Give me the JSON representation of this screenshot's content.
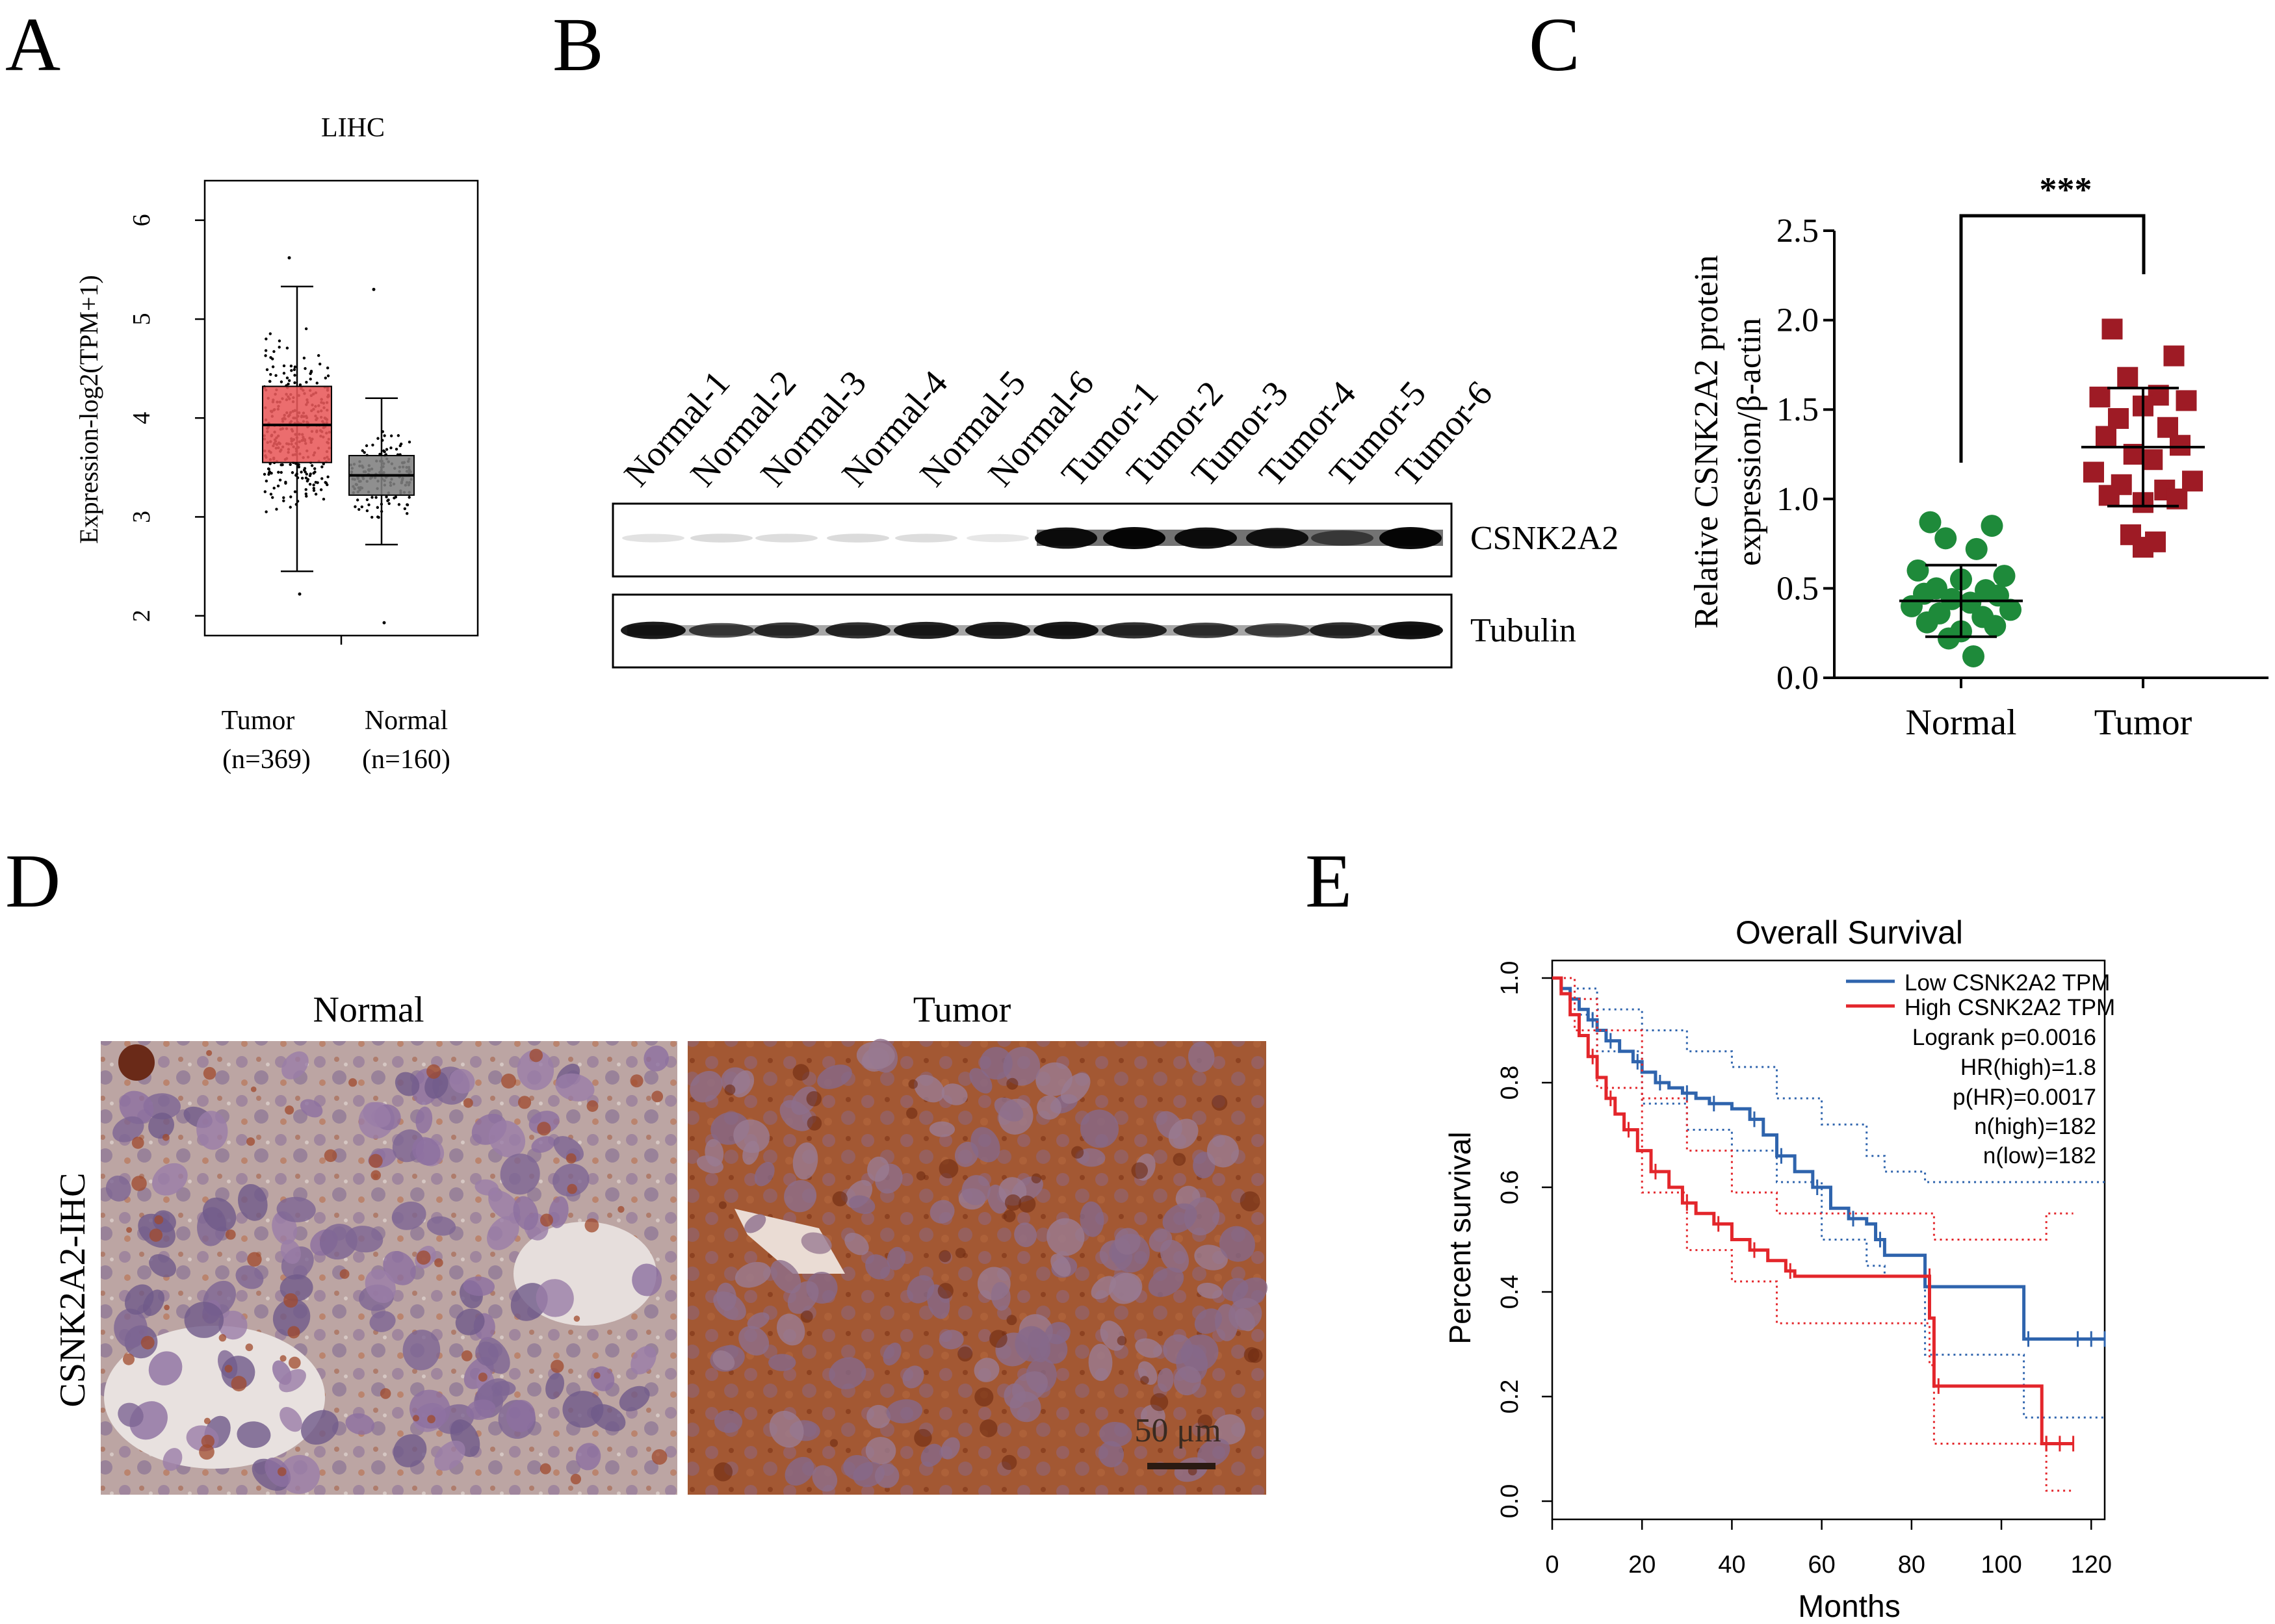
{
  "panel_letters": {
    "a": "A",
    "b": "B",
    "c": "C",
    "d": "D",
    "e": "E"
  },
  "panel_a": {
    "title": "LIHC",
    "ylabel": "Expression-log2(TPM+1)",
    "yticks": [
      "2",
      "3",
      "4",
      "5",
      "6"
    ],
    "groups": [
      {
        "name": "Tumor",
        "n": "(n=369)",
        "color": "#e8595a"
      },
      {
        "name": "Normal",
        "n": "(n=160)",
        "color": "#808080"
      }
    ]
  },
  "panel_b": {
    "lanes": [
      "Normal-1",
      "Normal-2",
      "Normal-3",
      "Normal-4",
      "Normal-5",
      "Normal-6",
      "Tumor-1",
      "Tumor-2",
      "Tumor-3",
      "Tumor-4",
      "Tumor-5",
      "Tumor-6"
    ],
    "rows": [
      "CSNK2A2",
      "Tubulin"
    ]
  },
  "panel_c": {
    "ylabel_line1": "Relative CSNK2A2 protein",
    "ylabel_line2": "expression/β-actin",
    "yticks": [
      "0.0",
      "0.5",
      "1.0",
      "1.5",
      "2.0",
      "2.5"
    ],
    "groups": [
      "Normal",
      "Tumor"
    ],
    "significance": "***",
    "colors": {
      "normal": "#1e8a3a",
      "tumor": "#9e1b25"
    }
  },
  "panel_d": {
    "row_label": "CSNK2A2-IHC",
    "columns": [
      "Normal",
      "Tumor"
    ],
    "scale_bar": "50 μm"
  },
  "panel_e": {
    "title": "Overall Survival",
    "xlabel": "Months",
    "ylabel": "Percent survival",
    "xticks": [
      "0",
      "20",
      "40",
      "60",
      "80",
      "100",
      "120"
    ],
    "yticks": [
      "0.0",
      "0.2",
      "0.4",
      "0.6",
      "0.8",
      "1.0"
    ],
    "legend": [
      "Low CSNK2A2 TPM",
      "High CSNK2A2 TPM"
    ],
    "stats": [
      "Logrank p=0.0016",
      "HR(high)=1.8",
      "p(HR)=0.0017",
      "n(high)=182",
      "n(low)=182"
    ],
    "colors": {
      "low": "#2f64ad",
      "high": "#e3262b"
    }
  },
  "chart_data": [
    {
      "type": "box",
      "panel": "A",
      "title": "LIHC",
      "ylabel": "Expression-log2(TPM+1)",
      "ylim": [
        1.8,
        6.4
      ],
      "categories": [
        "Tumor",
        "Normal"
      ],
      "boxes": [
        {
          "name": "Tumor",
          "whisker_low": 2.45,
          "q1": 3.55,
          "median": 3.93,
          "q3": 4.32,
          "whisker_high": 5.33,
          "min": 2.22,
          "max": 5.62
        },
        {
          "name": "Normal",
          "whisker_low": 2.72,
          "q1": 3.22,
          "median": 3.42,
          "q3": 3.62,
          "whisker_high": 4.2,
          "min": 1.93,
          "max": 5.3
        }
      ]
    },
    {
      "type": "scatter",
      "panel": "C",
      "ylabel": "Relative CSNK2A2 protein expression/β-actin",
      "ylim": [
        0,
        2.5
      ],
      "categories": [
        "Normal",
        "Tumor"
      ],
      "series": [
        {
          "name": "Normal",
          "mean": 0.43,
          "sd_low": 0.23,
          "sd_high": 0.63,
          "values": [
            0.87,
            0.85,
            0.78,
            0.72,
            0.6,
            0.57,
            0.55,
            0.5,
            0.49,
            0.47,
            0.46,
            0.44,
            0.42,
            0.4,
            0.38,
            0.36,
            0.34,
            0.31,
            0.29,
            0.26,
            0.22,
            0.12
          ]
        },
        {
          "name": "Tumor",
          "mean": 1.29,
          "sd_low": 0.96,
          "sd_high": 1.62,
          "values": [
            1.95,
            1.8,
            1.68,
            1.58,
            1.57,
            1.55,
            1.52,
            1.45,
            1.4,
            1.35,
            1.3,
            1.25,
            1.22,
            1.15,
            1.1,
            1.08,
            1.05,
            1.02,
            1.0,
            0.98,
            0.8,
            0.76,
            0.73
          ]
        }
      ]
    },
    {
      "type": "line",
      "panel": "E",
      "title": "Overall Survival",
      "xlabel": "Months",
      "ylabel": "Percent survival",
      "xlim": [
        0,
        123
      ],
      "ylim": [
        0,
        1
      ],
      "series": [
        {
          "name": "Low CSNK2A2 TPM",
          "points": [
            [
              0,
              1.0
            ],
            [
              2,
              0.98
            ],
            [
              4,
              0.96
            ],
            [
              6,
              0.94
            ],
            [
              8,
              0.92
            ],
            [
              10,
              0.9
            ],
            [
              12,
              0.88
            ],
            [
              15,
              0.86
            ],
            [
              18,
              0.84
            ],
            [
              20,
              0.82
            ],
            [
              23,
              0.8
            ],
            [
              26,
              0.79
            ],
            [
              29,
              0.78
            ],
            [
              32,
              0.77
            ],
            [
              35,
              0.76
            ],
            [
              40,
              0.75
            ],
            [
              44,
              0.73
            ],
            [
              47,
              0.7
            ],
            [
              50,
              0.66
            ],
            [
              54,
              0.63
            ],
            [
              58,
              0.6
            ],
            [
              62,
              0.56
            ],
            [
              66,
              0.54
            ],
            [
              70,
              0.53
            ],
            [
              72,
              0.5
            ],
            [
              74,
              0.47
            ],
            [
              83,
              0.41
            ],
            [
              105,
              0.41
            ],
            [
              105,
              0.31
            ],
            [
              123,
              0.31
            ]
          ],
          "upper": [
            [
              0,
              1.0
            ],
            [
              5,
              0.98
            ],
            [
              10,
              0.94
            ],
            [
              20,
              0.9
            ],
            [
              30,
              0.86
            ],
            [
              40,
              0.83
            ],
            [
              50,
              0.77
            ],
            [
              60,
              0.72
            ],
            [
              70,
              0.66
            ],
            [
              74,
              0.63
            ],
            [
              83,
              0.61
            ],
            [
              123,
              0.61
            ]
          ],
          "lower": [
            [
              0,
              1.0
            ],
            [
              5,
              0.93
            ],
            [
              10,
              0.86
            ],
            [
              20,
              0.76
            ],
            [
              30,
              0.71
            ],
            [
              40,
              0.67
            ],
            [
              50,
              0.61
            ],
            [
              60,
              0.5
            ],
            [
              70,
              0.45
            ],
            [
              74,
              0.43
            ],
            [
              83,
              0.28
            ],
            [
              105,
              0.16
            ],
            [
              123,
              0.16
            ]
          ]
        },
        {
          "name": "High CSNK2A2 TPM",
          "points": [
            [
              0,
              1.0
            ],
            [
              2,
              0.97
            ],
            [
              4,
              0.93
            ],
            [
              6,
              0.89
            ],
            [
              8,
              0.85
            ],
            [
              10,
              0.81
            ],
            [
              12,
              0.77
            ],
            [
              14,
              0.74
            ],
            [
              16,
              0.71
            ],
            [
              19,
              0.67
            ],
            [
              22,
              0.63
            ],
            [
              26,
              0.6
            ],
            [
              29,
              0.57
            ],
            [
              32,
              0.55
            ],
            [
              36,
              0.53
            ],
            [
              40,
              0.5
            ],
            [
              44,
              0.48
            ],
            [
              48,
              0.46
            ],
            [
              52,
              0.44
            ],
            [
              54,
              0.43
            ],
            [
              83,
              0.43
            ],
            [
              84,
              0.35
            ],
            [
              85,
              0.22
            ],
            [
              109,
              0.22
            ],
            [
              109,
              0.11
            ],
            [
              116,
              0.11
            ]
          ],
          "upper": [
            [
              0,
              1.0
            ],
            [
              5,
              0.96
            ],
            [
              10,
              0.9
            ],
            [
              20,
              0.77
            ],
            [
              30,
              0.67
            ],
            [
              40,
              0.59
            ],
            [
              50,
              0.55
            ],
            [
              84,
              0.55
            ],
            [
              85,
              0.5
            ],
            [
              109,
              0.5
            ],
            [
              110,
              0.55
            ],
            [
              116,
              0.55
            ]
          ],
          "lower": [
            [
              0,
              1.0
            ],
            [
              5,
              0.9
            ],
            [
              10,
              0.79
            ],
            [
              20,
              0.59
            ],
            [
              30,
              0.48
            ],
            [
              40,
              0.42
            ],
            [
              50,
              0.34
            ],
            [
              84,
              0.26
            ],
            [
              85,
              0.11
            ],
            [
              109,
              0.11
            ],
            [
              110,
              0.02
            ],
            [
              116,
              0.02
            ]
          ]
        }
      ]
    }
  ]
}
